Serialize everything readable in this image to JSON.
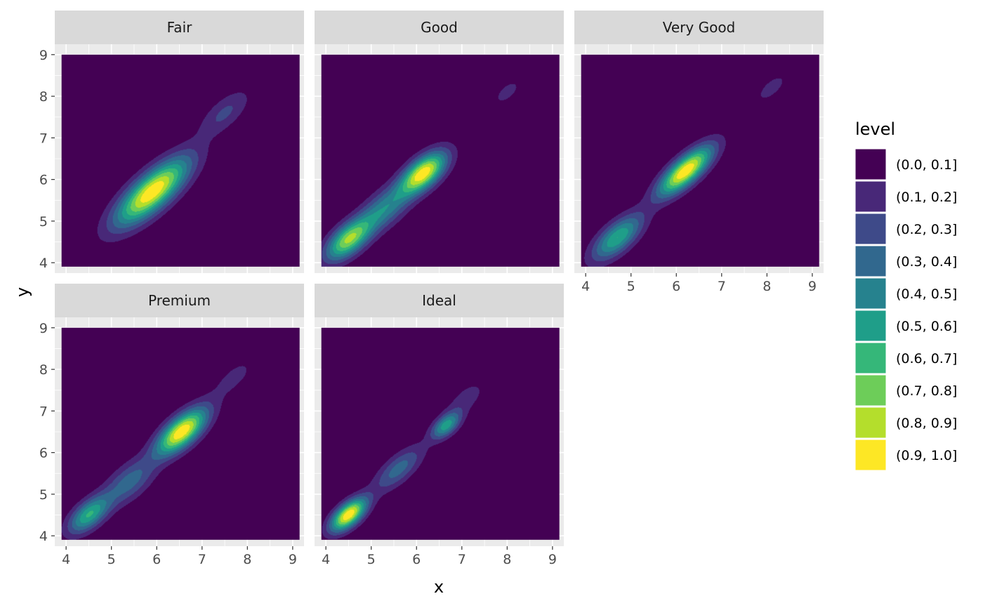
{
  "chart_data": {
    "type": "density_2d_filled",
    "facet_variable": "cut",
    "panels": [
      {
        "name": "Fair",
        "peaks": [
          {
            "x": 5.9,
            "y": 5.7,
            "weight": 1.0,
            "sd_major": 0.75,
            "sd_minor": 0.27
          },
          {
            "x": 7.5,
            "y": 7.6,
            "weight": 0.22,
            "sd_major": 0.5,
            "sd_minor": 0.22
          }
        ]
      },
      {
        "name": "Good",
        "peaks": [
          {
            "x": 6.15,
            "y": 6.15,
            "weight": 1.0,
            "sd_major": 0.45,
            "sd_minor": 0.22
          },
          {
            "x": 4.5,
            "y": 4.55,
            "weight": 0.82,
            "sd_major": 0.45,
            "sd_minor": 0.22
          },
          {
            "x": 5.3,
            "y": 5.3,
            "weight": 0.45,
            "sd_major": 0.5,
            "sd_minor": 0.25
          },
          {
            "x": 8.0,
            "y": 8.1,
            "weight": 0.12,
            "sd_major": 0.45,
            "sd_minor": 0.22
          }
        ]
      },
      {
        "name": "Very Good",
        "peaks": [
          {
            "x": 6.2,
            "y": 6.2,
            "weight": 1.0,
            "sd_major": 0.55,
            "sd_minor": 0.2
          },
          {
            "x": 4.7,
            "y": 4.6,
            "weight": 0.6,
            "sd_major": 0.5,
            "sd_minor": 0.22
          },
          {
            "x": 8.1,
            "y": 8.2,
            "weight": 0.12,
            "sd_major": 0.5,
            "sd_minor": 0.22
          }
        ]
      },
      {
        "name": "Premium",
        "peaks": [
          {
            "x": 6.55,
            "y": 6.5,
            "weight": 1.0,
            "sd_major": 0.5,
            "sd_minor": 0.22
          },
          {
            "x": 4.5,
            "y": 4.5,
            "weight": 0.6,
            "sd_major": 0.4,
            "sd_minor": 0.2
          },
          {
            "x": 5.4,
            "y": 5.3,
            "weight": 0.35,
            "sd_major": 0.5,
            "sd_minor": 0.25
          },
          {
            "x": 7.7,
            "y": 7.8,
            "weight": 0.13,
            "sd_major": 0.5,
            "sd_minor": 0.22
          }
        ]
      },
      {
        "name": "Ideal",
        "peaks": [
          {
            "x": 4.5,
            "y": 4.5,
            "weight": 1.0,
            "sd_major": 0.35,
            "sd_minor": 0.17
          },
          {
            "x": 6.65,
            "y": 6.65,
            "weight": 0.55,
            "sd_major": 0.28,
            "sd_minor": 0.15
          },
          {
            "x": 5.6,
            "y": 5.6,
            "weight": 0.35,
            "sd_major": 0.5,
            "sd_minor": 0.2
          },
          {
            "x": 7.1,
            "y": 7.3,
            "weight": 0.15,
            "sd_major": 0.4,
            "sd_minor": 0.2
          }
        ]
      }
    ],
    "xlabel": "x",
    "ylabel": "y",
    "x_ticks": [
      4,
      5,
      6,
      7,
      8,
      9
    ],
    "y_ticks": [
      4,
      5,
      6,
      7,
      8,
      9
    ],
    "xlim": [
      3.75,
      9.25
    ],
    "ylim": [
      3.75,
      9.25
    ],
    "density_region": [
      3.9,
      9.15,
      3.9,
      9.0
    ],
    "legend": {
      "title": "level",
      "position": "right",
      "entries": [
        {
          "label": "(0.0, 0.1]",
          "color": "#440154"
        },
        {
          "label": "(0.1, 0.2]",
          "color": "#482878"
        },
        {
          "label": "(0.2, 0.3]",
          "color": "#3E4A89"
        },
        {
          "label": "(0.3, 0.4]",
          "color": "#31688E"
        },
        {
          "label": "(0.4, 0.5]",
          "color": "#26828E"
        },
        {
          "label": "(0.5, 0.6]",
          "color": "#1F9E89"
        },
        {
          "label": "(0.6, 0.7]",
          "color": "#35B779"
        },
        {
          "label": "(0.7, 0.8]",
          "color": "#6DCD59"
        },
        {
          "label": "(0.8, 0.9]",
          "color": "#B4DE2C"
        },
        {
          "label": "(0.9, 1.0]",
          "color": "#FDE725"
        }
      ]
    },
    "colors": {
      "panel_background": "#EBEBEB",
      "grid_major": "#FFFFFF",
      "strip_background": "#D9D9D9"
    }
  }
}
